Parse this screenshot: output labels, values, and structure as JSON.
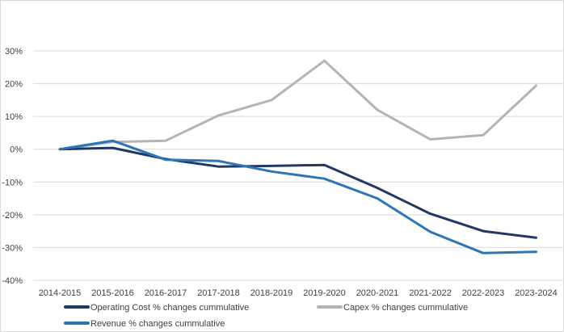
{
  "chart_data": {
    "type": "line",
    "title": "",
    "xlabel": "",
    "ylabel": "",
    "ylim": [
      -40,
      30
    ],
    "yticks": [
      30,
      20,
      10,
      0,
      -10,
      -20,
      -30,
      -40
    ],
    "ytick_labels": [
      "30%",
      "20%",
      "10%",
      "0%",
      "-10%",
      "-20%",
      "-30%",
      "-40%"
    ],
    "grid": true,
    "legend_position": "bottom",
    "categories": [
      "2014-2015",
      "2015-2016",
      "2016-2017",
      "2017-2018",
      "2018-2019",
      "2019-2020",
      "2020-2021",
      "2021-2022",
      "2022-2023",
      "2023-2024"
    ],
    "series": [
      {
        "name": "Operating Cost % changes cummulative",
        "color": "#1f3864",
        "values": [
          0,
          0.4,
          -3.0,
          -5.3,
          -5.1,
          -4.8,
          -11.8,
          -19.7,
          -25.0,
          -27.0
        ]
      },
      {
        "name": "Capex % changes cummulative",
        "color": "#b4b4b4",
        "values": [
          0,
          2.2,
          2.6,
          10.3,
          15.0,
          27.0,
          12.0,
          3.0,
          4.3,
          19.4
        ]
      },
      {
        "name": "Revenue % changes cummulative",
        "color": "#2e75b6",
        "values": [
          0,
          2.6,
          -3.2,
          -3.6,
          -6.8,
          -9.0,
          -15.0,
          -25.2,
          -31.7,
          -31.3
        ]
      }
    ]
  }
}
